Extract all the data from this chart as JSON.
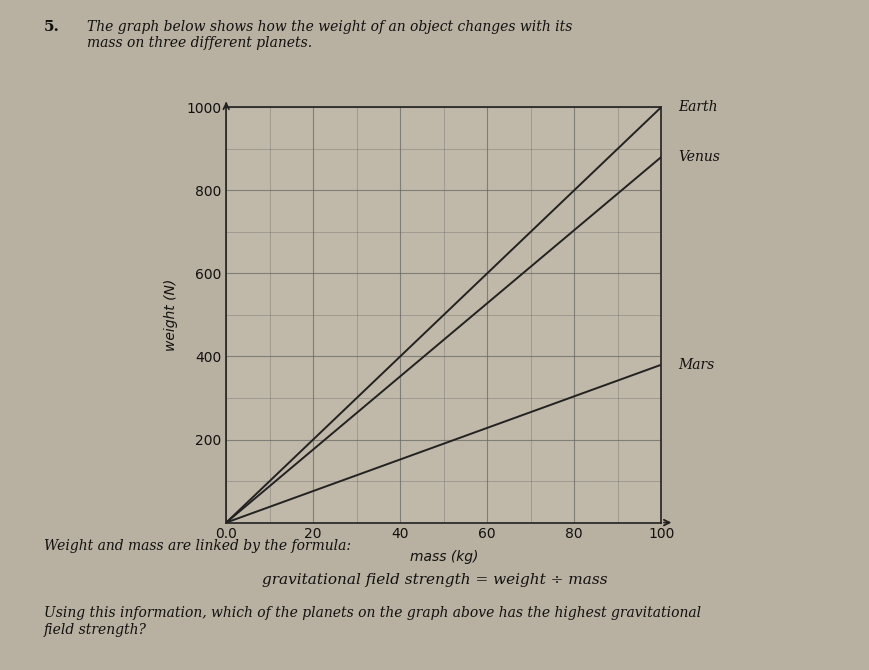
{
  "title_number": "5.",
  "title_text": "The graph below shows how the weight of an object changes with its\nmass on three different planets.",
  "xlabel": "mass (kg)",
  "ylabel": "weight (N)",
  "xlim": [
    0,
    100
  ],
  "ylim": [
    0,
    1000
  ],
  "xticks": [
    0,
    20,
    40,
    60,
    80,
    100
  ],
  "yticks": [
    0,
    200,
    400,
    600,
    800,
    1000
  ],
  "x_tick_labels": [
    "0.0",
    "20",
    "40",
    "60",
    "80",
    "100"
  ],
  "y_tick_labels": [
    "",
    "200",
    "400",
    "600",
    "800",
    "1000"
  ],
  "planets": [
    {
      "name": "Earth",
      "slope": 10.0
    },
    {
      "name": "Venus",
      "slope": 8.8
    },
    {
      "name": "Mars",
      "slope": 3.8
    }
  ],
  "formula_line1": "Weight and mass are linked by the formula:",
  "formula_line2": "gravitational field strength = weight ÷ mass",
  "question_text": "Using this information, which of the planets on the graph above has the highest gravitational\nfield strength?",
  "background_color": "#b8b0a0",
  "plot_bg_color": "#c0b8a8",
  "grid_color": "#666666",
  "line_color": "#222222",
  "text_color": "#111111",
  "font_size_title": 10,
  "font_size_axis": 10,
  "font_size_label": 10,
  "font_size_text": 10
}
